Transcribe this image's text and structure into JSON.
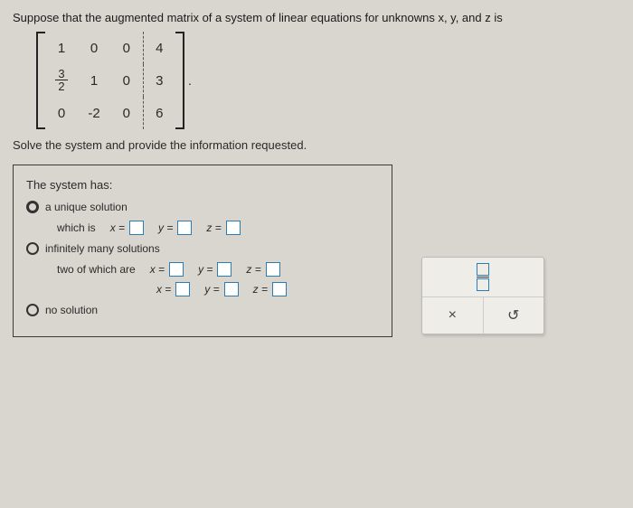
{
  "question": "Suppose that the augmented matrix of a system of linear equations for unknowns x, y, and z is",
  "matrix": {
    "rows": [
      [
        "1",
        "0",
        "0",
        "4"
      ],
      [
        "3/2",
        "1",
        "0",
        "3"
      ],
      [
        "0",
        "-2",
        "0",
        "6"
      ]
    ]
  },
  "instruction": "Solve the system and provide the information requested.",
  "panel": {
    "title": "The system has:",
    "opt_unique": "a unique solution",
    "which_is": "which is",
    "opt_inf": "infinitely many solutions",
    "two_of": "two of which are",
    "opt_none": "no solution",
    "x_eq": "x =",
    "y_eq": "y =",
    "z_eq": "z ="
  },
  "tool": {
    "close": "×",
    "reset": "↺"
  }
}
